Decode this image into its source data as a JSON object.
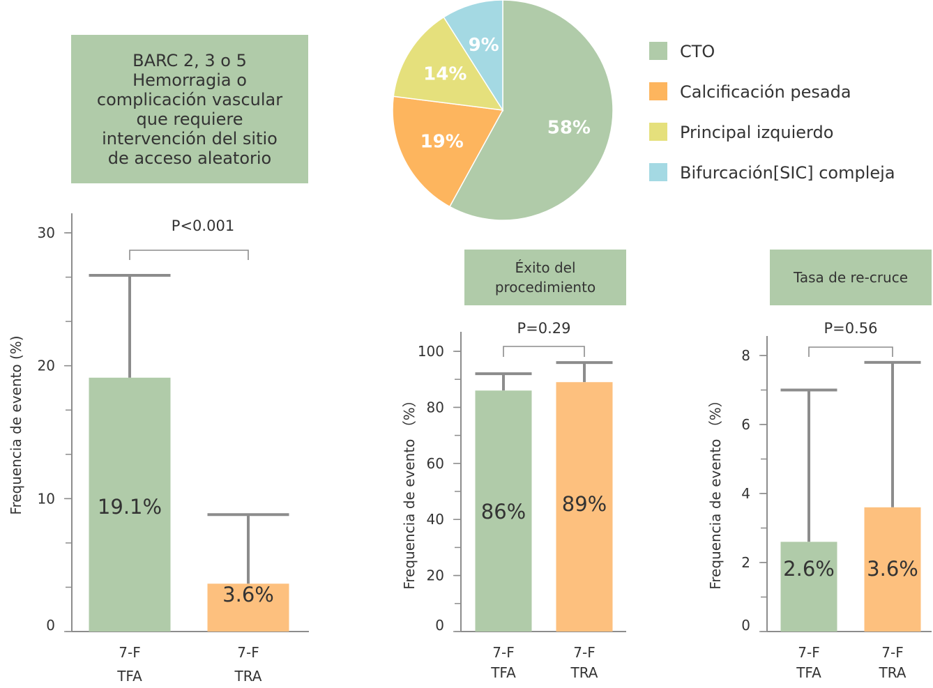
{
  "colors": {
    "tfa": "#b0cba9",
    "tra": "#fdc07e",
    "cto": "#b0cba9",
    "calcificacion": "#fdb55e",
    "principal": "#e5e07c",
    "bifurcacion": "#a4d9e3",
    "title_box": "#b0cba9"
  },
  "pie": {
    "legend": [
      "CTO",
      "Calcificación pesada",
      "Principal izquierdo",
      "Bifurcación[SIC] compleja"
    ]
  },
  "chart_data": [
    {
      "type": "pie",
      "labels": [
        "CTO",
        "Calcificación pesada",
        "Principal izquierdo",
        "Bifurcación[SIC] compleja"
      ],
      "values": [
        58,
        19,
        14,
        9
      ],
      "value_labels": [
        "58%",
        "19%",
        "14%",
        "9%"
      ],
      "legend_position": "right"
    },
    {
      "type": "bar",
      "title_lines": [
        "BARC 2, 3 o 5",
        "Hemorragia o",
        "complicación vascular",
        "que requiere",
        "intervención del sitio",
        "de acceso aleatorio"
      ],
      "categories": [
        [
          "7-F",
          "TFA"
        ],
        [
          "7-F",
          "TRA"
        ]
      ],
      "values": [
        19.1,
        3.6
      ],
      "error_upper": [
        26.8,
        8.8
      ],
      "value_labels": [
        "19.1%",
        "3.6%"
      ],
      "ylabel": "Frequencia de evento (%)",
      "ylim": [
        0,
        30
      ],
      "yticks": [
        0,
        10,
        20,
        30
      ],
      "minor_step": 3.333,
      "p_value": "P<0.001"
    },
    {
      "type": "bar",
      "title_lines": [
        "Éxito del",
        "procedimiento"
      ],
      "categories": [
        [
          "7-F",
          "TFA"
        ],
        [
          "7-F",
          "TRA"
        ]
      ],
      "values": [
        86,
        89
      ],
      "error_upper": [
        92,
        96
      ],
      "value_labels": [
        "86%",
        "89%"
      ],
      "ylabel": "Frequencia de evento （%）",
      "ylim": [
        0,
        100
      ],
      "yticks": [
        0,
        20,
        40,
        60,
        80,
        100
      ],
      "minor_step": 10,
      "p_value": "P=0.29"
    },
    {
      "type": "bar",
      "title_lines": [
        "Tasa de re-cruce"
      ],
      "categories": [
        [
          "7-F",
          "TFA"
        ],
        [
          "7-F",
          "TRA"
        ]
      ],
      "values": [
        2.6,
        3.6
      ],
      "error_upper": [
        7.0,
        7.8
      ],
      "value_labels": [
        "2.6%",
        "3.6%"
      ],
      "ylabel": "Frequencia de evento （%）",
      "ylim": [
        0,
        8
      ],
      "yticks": [
        0,
        2,
        4,
        6,
        8
      ],
      "minor_step": 1,
      "p_value": "P=0.56"
    }
  ]
}
